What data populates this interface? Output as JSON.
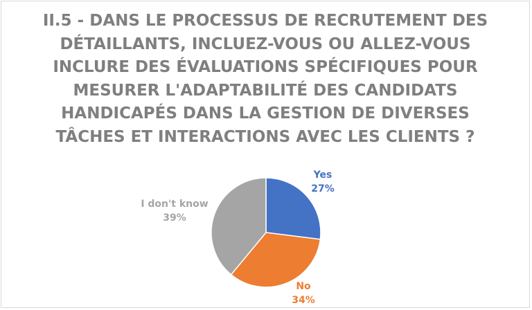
{
  "chart_data": {
    "type": "pie",
    "title": "II.5 - DANS LE PROCESSUS DE RECRUTEMENT DES DÉTAILLANTS, INCLUEZ-VOUS OU ALLEZ-VOUS INCLURE DES ÉVALUATIONS SPÉCIFIQUES POUR MESURER L'ADAPTABILITÉ DES CANDIDATS HANDICAPÉS DANS LA GESTION DE DIVERSES TÂCHES ET INTERACTIONS AVEC LES CLIENTS ?",
    "slices": [
      {
        "name": "Yes",
        "value": 27,
        "label": "27%",
        "color": "#4472c4"
      },
      {
        "name": "No",
        "value": 34,
        "label": "34%",
        "color": "#ed7d31"
      },
      {
        "name": "I don't know",
        "value": 39,
        "label": "39%",
        "color": "#a5a5a5"
      }
    ],
    "legend": "none",
    "data_labels": "outside"
  }
}
